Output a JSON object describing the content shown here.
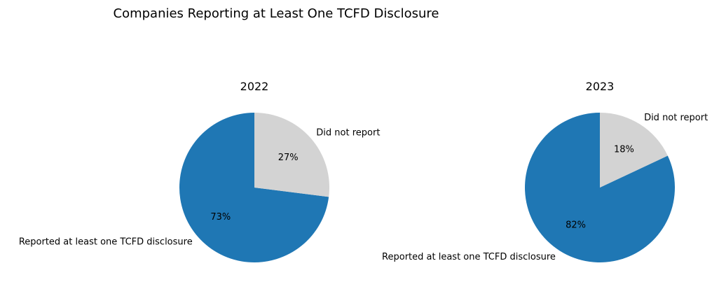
{
  "figure": {
    "title": "Companies Reporting at Least One TCFD Disclosure"
  },
  "chart_data": [
    {
      "type": "pie",
      "title": "2022",
      "labels": [
        "Reported at least one TCFD disclosure",
        "Did not report"
      ],
      "values": [
        73,
        27
      ],
      "value_labels": [
        "73%",
        "27%"
      ],
      "colors": [
        "#1f77b4",
        "#d3d3d3"
      ],
      "legend": "none"
    },
    {
      "type": "pie",
      "title": "2023",
      "labels": [
        "Reported at least one TCFD disclosure",
        "Did not report"
      ],
      "values": [
        82,
        18
      ],
      "value_labels": [
        "82%",
        "18%"
      ],
      "colors": [
        "#1f77b4",
        "#d3d3d3"
      ],
      "legend": "none"
    }
  ]
}
